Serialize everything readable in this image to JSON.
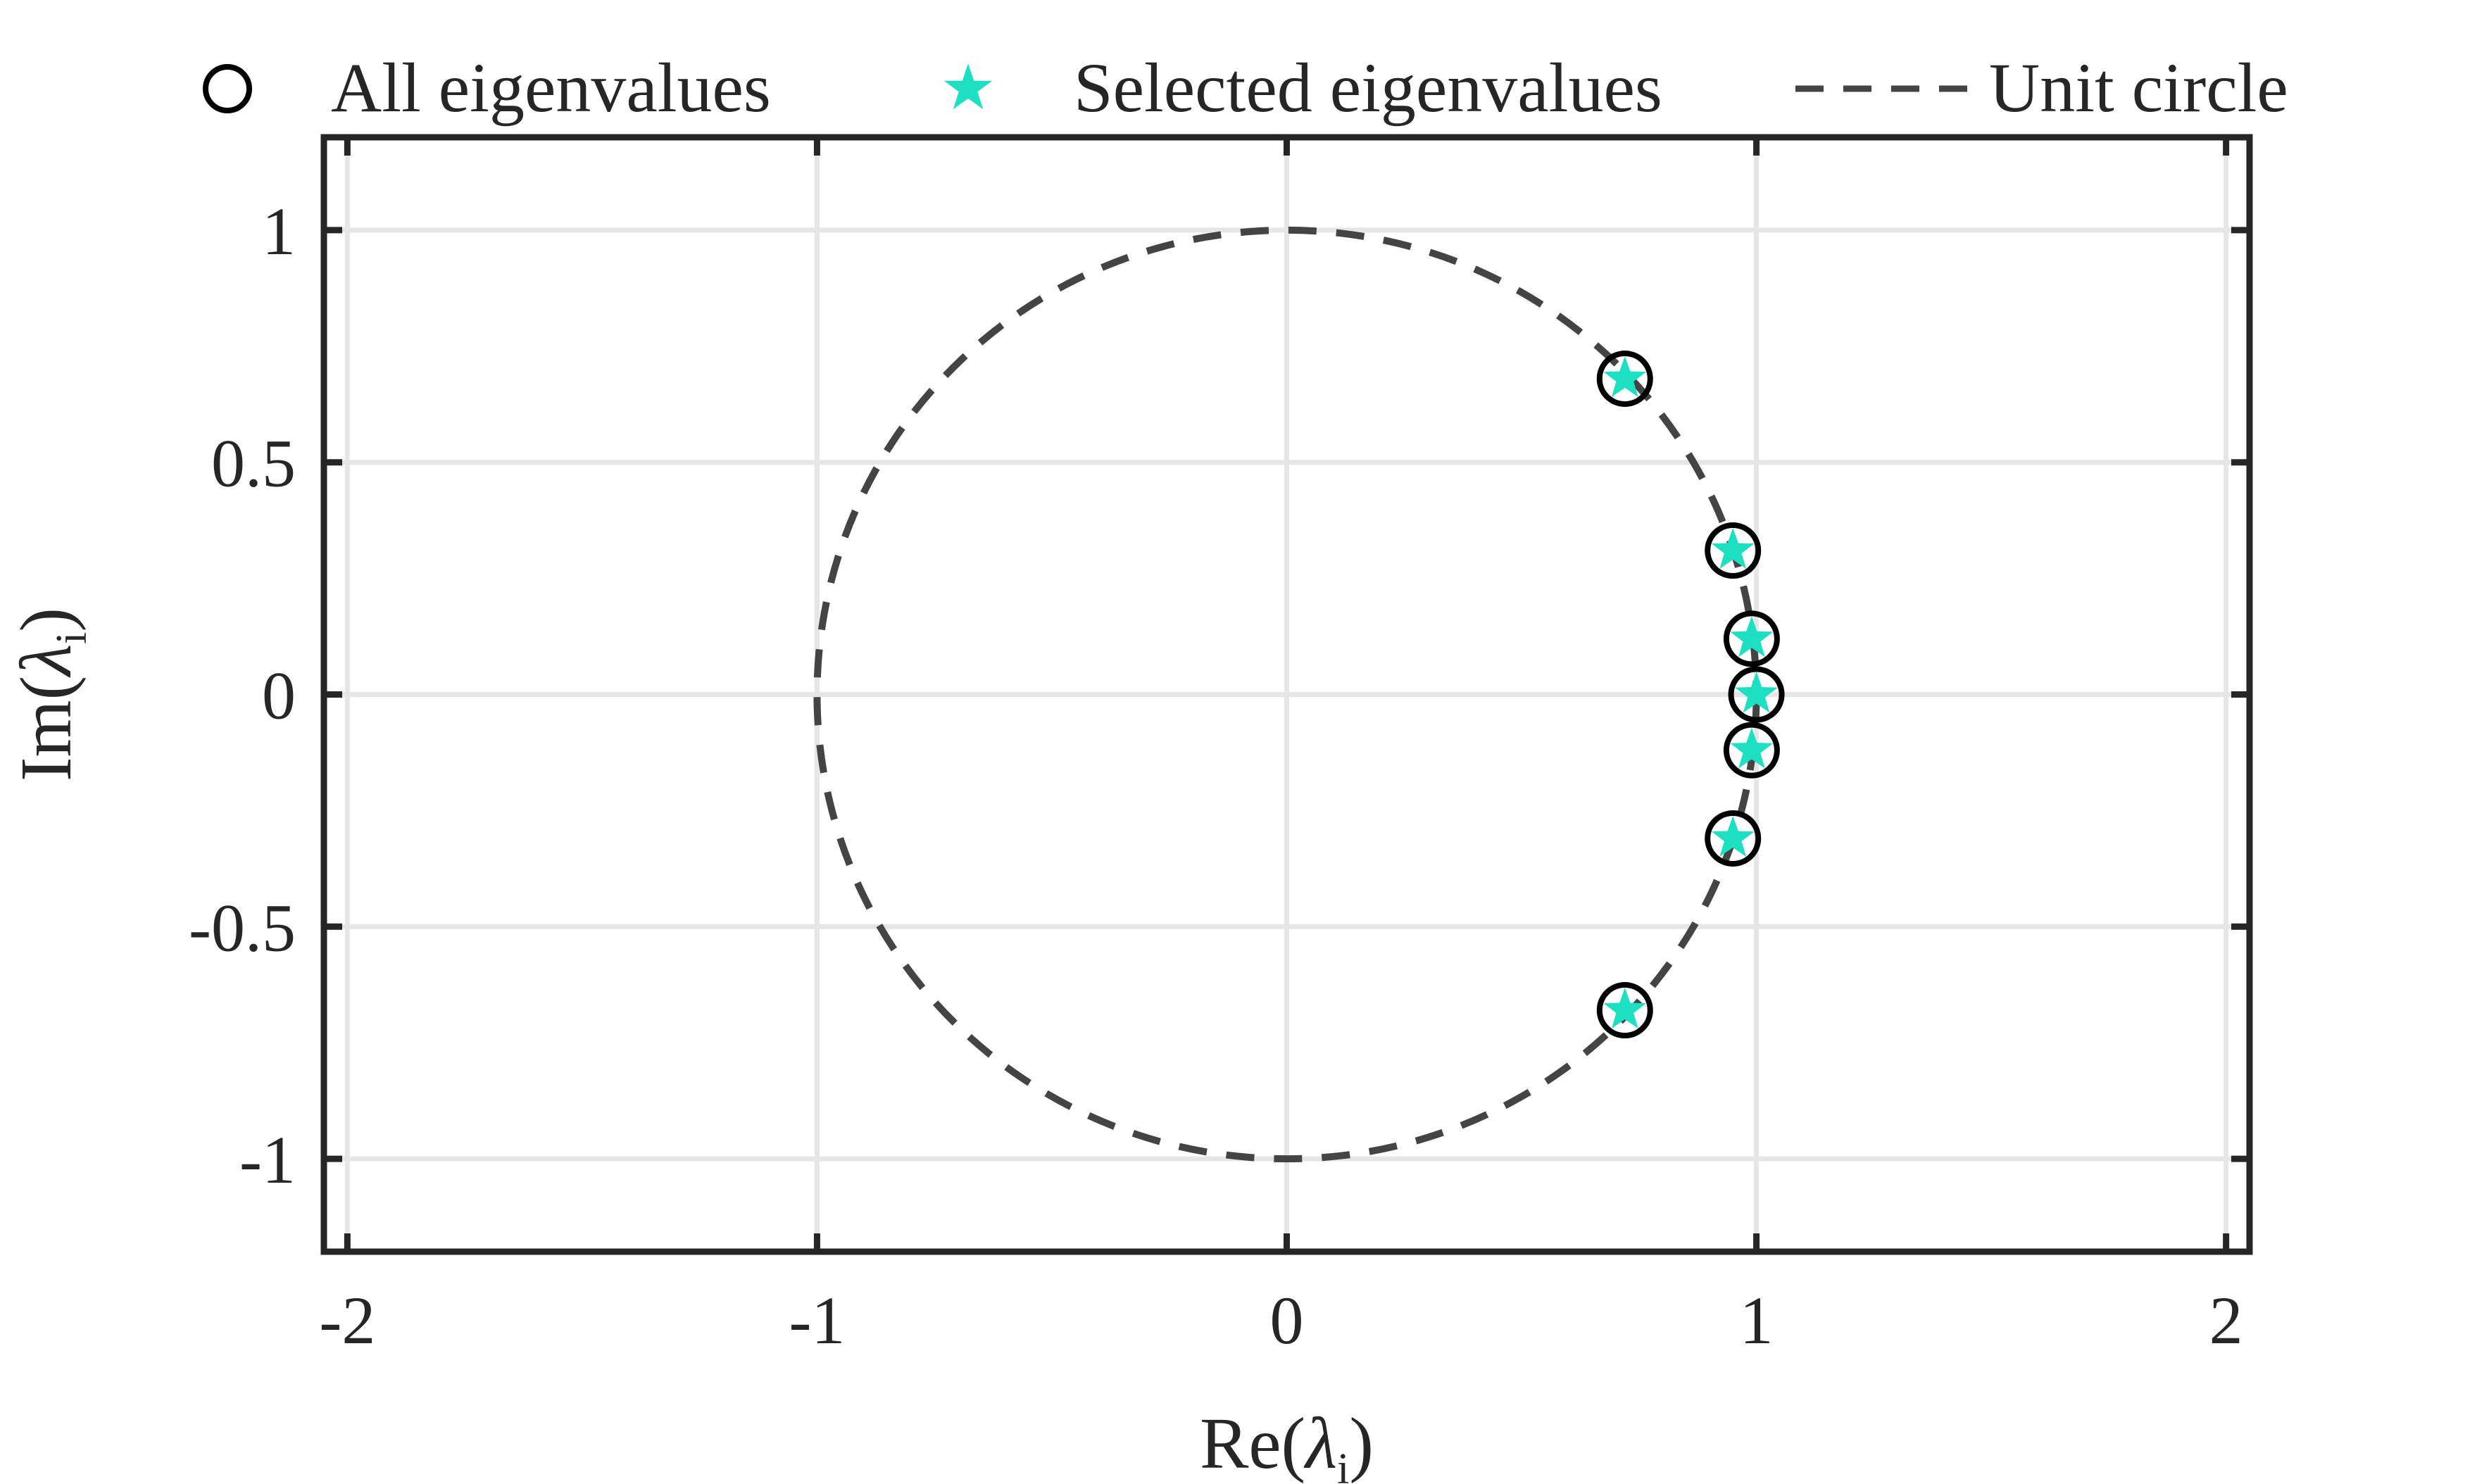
{
  "chart_data": {
    "type": "scatter",
    "title": "",
    "xlabel": "Re(λi)",
    "ylabel": "Im(λi)",
    "xlabel_parts": {
      "prefix": "Re(",
      "symbol": "λ",
      "subscript": "i",
      "suffix": ")"
    },
    "ylabel_parts": {
      "prefix": "Im(",
      "symbol": "λ",
      "subscript": "i",
      "suffix": ")"
    },
    "xlim": [
      -2.05,
      2.05
    ],
    "ylim": [
      -1.2,
      1.2
    ],
    "xticks": [
      -2,
      -1,
      0,
      1,
      2
    ],
    "xtick_labels": [
      "-2",
      "-1",
      "0",
      "1",
      "2"
    ],
    "yticks": [
      -1,
      -0.5,
      0,
      0.5,
      1
    ],
    "ytick_labels": [
      "-1",
      "-0.5",
      "0",
      "0.5",
      "1"
    ],
    "grid": true,
    "legend_position": "top",
    "series": [
      {
        "name": "All eigenvalues",
        "marker": "circle-open",
        "color": "#000000",
        "x": [
          0.72,
          0.95,
          0.99,
          1.0,
          0.99,
          0.95,
          0.72
        ],
        "y": [
          0.68,
          0.31,
          0.12,
          0.0,
          -0.12,
          -0.31,
          -0.68
        ]
      },
      {
        "name": "Selected eigenvalues",
        "marker": "star-filled",
        "color": "#1de0c2",
        "x": [
          0.72,
          0.95,
          0.99,
          1.0,
          0.99,
          0.95,
          0.72
        ],
        "y": [
          0.68,
          0.31,
          0.12,
          0.0,
          -0.12,
          -0.31,
          -0.68
        ]
      },
      {
        "name": "Unit circle",
        "line": "dashed",
        "color": "#444444",
        "shape": "circle",
        "center": [
          0,
          0
        ],
        "radius": 1
      }
    ]
  },
  "colors": {
    "axes": "#262626",
    "grid": "#e6e6e6",
    "circle_marker": "#000000",
    "star_marker": "#1de0c2",
    "unit_circle": "#444444"
  }
}
